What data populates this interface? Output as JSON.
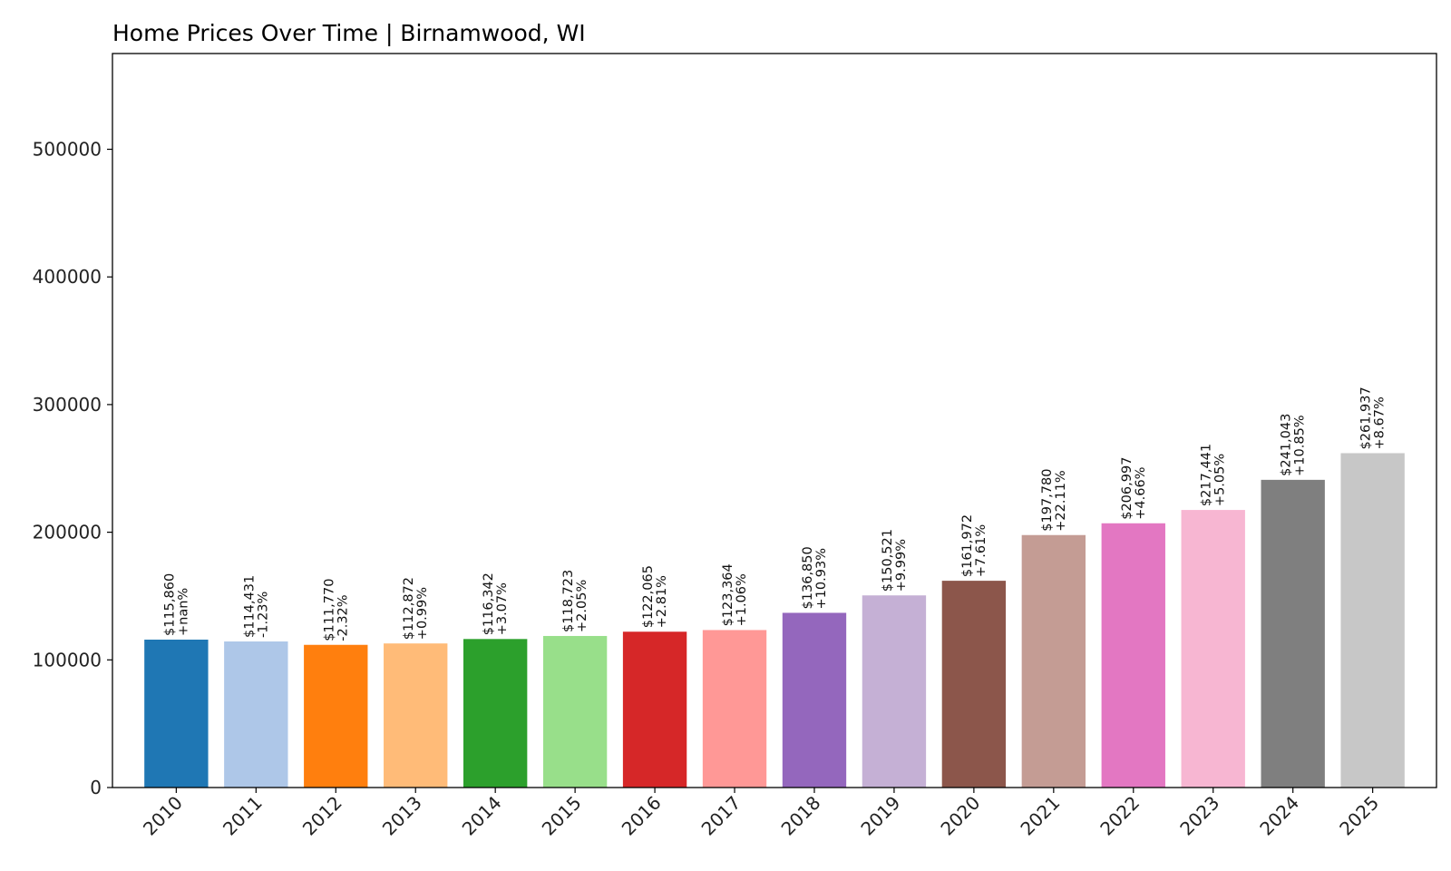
{
  "chart_data": {
    "type": "bar",
    "title": "Home Prices Over Time | Birnamwood, WI",
    "xlabel": "",
    "ylabel": "",
    "ylim": [
      0,
      575000
    ],
    "yticks": [
      0,
      100000,
      200000,
      300000,
      400000,
      500000
    ],
    "ytick_labels": [
      "0",
      "100000",
      "200000",
      "300000",
      "400000",
      "500000"
    ],
    "grid": false,
    "legend": "none",
    "categories": [
      "2010",
      "2011",
      "2012",
      "2013",
      "2014",
      "2015",
      "2016",
      "2017",
      "2018",
      "2019",
      "2020",
      "2021",
      "2022",
      "2023",
      "2024",
      "2025"
    ],
    "values": [
      115860,
      114431,
      111770,
      112872,
      116342,
      118723,
      122065,
      123364,
      136850,
      150521,
      161972,
      197780,
      206997,
      217441,
      241043,
      261937
    ],
    "value_labels": [
      "$115,860",
      "$114,431",
      "$111,770",
      "$112,872",
      "$116,342",
      "$118,723",
      "$122,065",
      "$123,364",
      "$136,850",
      "$150,521",
      "$161,972",
      "$197,780",
      "$206,997",
      "$217,441",
      "$241,043",
      "$261,937"
    ],
    "change_labels": [
      "+nan%",
      "-1.23%",
      "-2.32%",
      "+0.99%",
      "+3.07%",
      "+2.05%",
      "+2.81%",
      "+1.06%",
      "+10.93%",
      "+9.99%",
      "+7.61%",
      "+22.11%",
      "+4.66%",
      "+5.05%",
      "+10.85%",
      "+8.67%"
    ],
    "colors": [
      "#1f77b4",
      "#aec7e8",
      "#ff7f0e",
      "#ffbb78",
      "#2ca02c",
      "#98df8a",
      "#d62728",
      "#ff9896",
      "#9467bd",
      "#c5b0d5",
      "#8c564b",
      "#c49c94",
      "#e377c2",
      "#f7b6d2",
      "#7f7f7f",
      "#c7c7c7"
    ]
  }
}
